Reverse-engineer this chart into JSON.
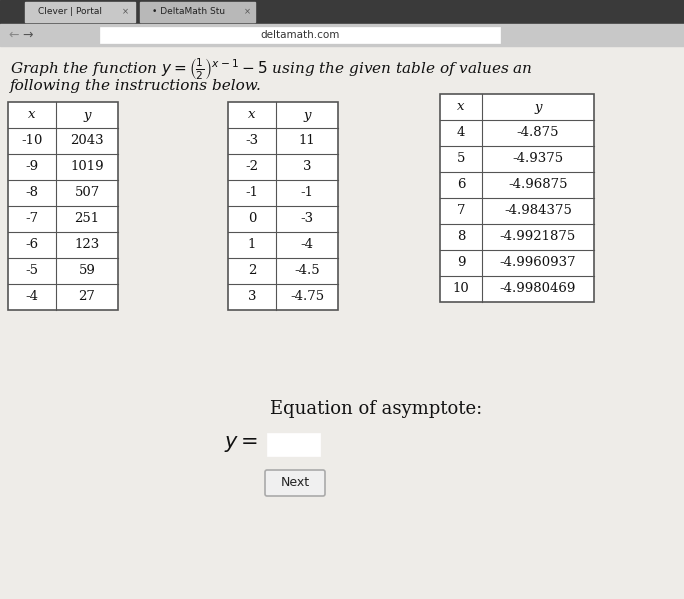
{
  "browser_tab1": "Clever | Portal",
  "browser_tab2": "DeltaMath Stu",
  "url": "deltamath.com",
  "table1": {
    "headers": [
      "x",
      "y"
    ],
    "rows": [
      [
        "-10",
        "2043"
      ],
      [
        "-9",
        "1019"
      ],
      [
        "-8",
        "507"
      ],
      [
        "-7",
        "251"
      ],
      [
        "-6",
        "123"
      ],
      [
        "-5",
        "59"
      ],
      [
        "-4",
        "27"
      ]
    ]
  },
  "table2": {
    "headers": [
      "x",
      "y"
    ],
    "rows": [
      [
        "-3",
        "11"
      ],
      [
        "-2",
        "3"
      ],
      [
        "-1",
        "-1"
      ],
      [
        "0",
        "-3"
      ],
      [
        "1",
        "-4"
      ],
      [
        "2",
        "-4.5"
      ],
      [
        "3",
        "-4.75"
      ]
    ]
  },
  "table3": {
    "headers": [
      "x",
      "y"
    ],
    "rows": [
      [
        "4",
        "-4.875"
      ],
      [
        "5",
        "-4.9375"
      ],
      [
        "6",
        "-4.96875"
      ],
      [
        "7",
        "-4.984375"
      ],
      [
        "8",
        "-4.9921875"
      ],
      [
        "9",
        "-4.9960937"
      ],
      [
        "10",
        "-4.9980469"
      ]
    ]
  },
  "asymptote_label": "Equation of asymptote:",
  "next_button": "Next",
  "bg_color": "#dcdcdc",
  "page_color": "#f2f1ee",
  "table_bg": "#ffffff",
  "text_color": "#000000",
  "border_color": "#888888",
  "tab_bar_color": "#3a3a3a",
  "tab1_color": "#c8c8c8",
  "tab2_color": "#b0b0b0",
  "url_bar_color": "#ffffff"
}
